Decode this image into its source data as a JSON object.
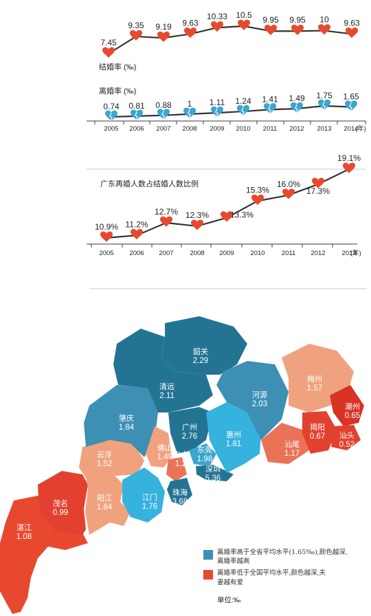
{
  "colors": {
    "heart_red": "#e8492e",
    "heart_blue": "#3ba6cf",
    "blue_dark": "#237493",
    "blue_mid": "#3e8fb4",
    "blue_light": "#36b2de",
    "orange_light": "#f0a27f",
    "orange_mid": "#ea7357",
    "red_dark": "#e3412f",
    "red_deep": "#d83325"
  },
  "chart_data": [
    {
      "type": "line",
      "title": "结婚率 (‰)",
      "x": [
        "2005",
        "2006",
        "2007",
        "2008",
        "2009",
        "2010",
        "2011",
        "2012",
        "2013",
        "2014"
      ],
      "values": [
        7.45,
        9.35,
        9.19,
        9.63,
        10.33,
        10.5,
        9.95,
        9.95,
        10,
        9.63
      ],
      "labels": [
        "7.45",
        "9.35",
        "9.19",
        "9.63",
        "10.33",
        "10.5",
        "9.95",
        "9.95",
        "10",
        "9.63"
      ],
      "marker": "heart-red-icon"
    },
    {
      "type": "line",
      "title": "离婚率 (‰)",
      "x": [
        "2005",
        "2006",
        "2007",
        "2008",
        "2009",
        "2010",
        "2011",
        "2012",
        "2013",
        "2014"
      ],
      "x_axis_unit": "(年)",
      "values": [
        0.74,
        0.81,
        0.88,
        1,
        1.11,
        1.24,
        1.41,
        1.49,
        1.75,
        1.65
      ],
      "labels": [
        "0.74",
        "0.81",
        "0.88",
        "1",
        "1.11",
        "1.24",
        "1.41",
        "1.49",
        "1.75",
        "1.65"
      ],
      "marker": "broken-heart-blue-icon"
    },
    {
      "type": "line",
      "title": "广东再婚人数占结婚人数比例",
      "x": [
        "2005",
        "2006",
        "2007",
        "2008",
        "2009",
        "2010",
        "2011",
        "2012",
        "2013"
      ],
      "x_axis_unit": "(年)",
      "values": [
        10.9,
        11.2,
        12.7,
        12.3,
        13.3,
        15.3,
        16.0,
        17.3,
        19.1
      ],
      "labels": [
        "10.9%",
        "11.2%",
        "12.7%",
        "12.3%",
        "13.3%",
        "15.3%",
        "16.0%",
        "17.3%",
        "19.1%"
      ],
      "marker": "heart-red-icon"
    },
    {
      "type": "map",
      "regions": [
        {
          "name": "韶关",
          "value": "2.29"
        },
        {
          "name": "清远",
          "value": "2.11"
        },
        {
          "name": "河源",
          "value": "2.03"
        },
        {
          "name": "梅州",
          "value": "1.57"
        },
        {
          "name": "潮州",
          "value": "0.65"
        },
        {
          "name": "揭阳",
          "value": "0.67"
        },
        {
          "name": "汕头",
          "value": "0.52"
        },
        {
          "name": "汕尾",
          "value": "1.17"
        },
        {
          "name": "肇庆",
          "value": "1.84"
        },
        {
          "name": "广州",
          "value": "2.76"
        },
        {
          "name": "惠州",
          "value": "1.81"
        },
        {
          "name": "佛山",
          "value": "1.49"
        },
        {
          "name": "东莞",
          "value": "1.98"
        },
        {
          "name": "深圳",
          "value": "5.36"
        },
        {
          "name": "中山",
          "value": "1.2"
        },
        {
          "name": "云浮",
          "value": "1.52"
        },
        {
          "name": "江门",
          "value": "1.76"
        },
        {
          "name": "珠海",
          "value": "3.68"
        },
        {
          "name": "阳江",
          "value": "1.64"
        },
        {
          "name": "茂名",
          "value": "0.99"
        },
        {
          "name": "湛江",
          "value": "1.08"
        }
      ],
      "legend": [
        {
          "text": "离婚率高于全省平均水平(1.65‰),颜色越深,",
          "text2": "离婚率越高",
          "color": "#3e8fb4"
        },
        {
          "text": "离婚率低于全国平均水平,颜色越深,夫",
          "text2": "妻越有爱",
          "color": "#e8492e"
        }
      ],
      "unit": "单位:‰"
    }
  ]
}
